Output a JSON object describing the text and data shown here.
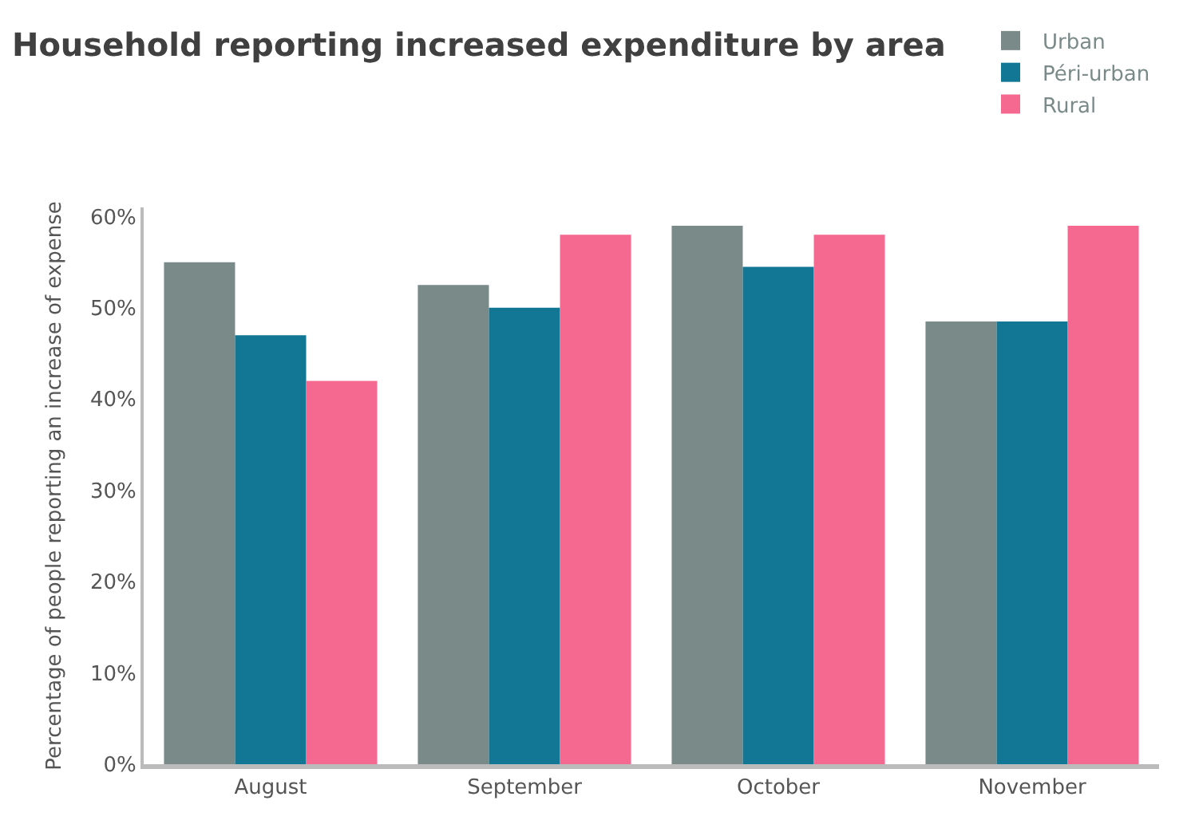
{
  "chart_data": {
    "type": "bar",
    "title": "Household reporting increased expenditure by area",
    "ylabel": "Percentage of people reporting an increase of expense",
    "categories": [
      "August",
      "September",
      "October",
      "November"
    ],
    "series": [
      {
        "name": "Urban",
        "color": "#7a8a89",
        "values": [
          55,
          52.5,
          59,
          48.5
        ]
      },
      {
        "name": "Péri-urban",
        "color": "#127794",
        "values": [
          47,
          50,
          54.5,
          48.5
        ]
      },
      {
        "name": "Rural",
        "color": "#f56991",
        "values": [
          42,
          58,
          58,
          59
        ]
      }
    ],
    "ylim": [
      0,
      61
    ],
    "yticks": [
      {
        "value": 0,
        "label": "0%"
      },
      {
        "value": 10,
        "label": "10%"
      },
      {
        "value": 20,
        "label": "20%"
      },
      {
        "value": 30,
        "label": "30%"
      },
      {
        "value": 40,
        "label": "40%"
      },
      {
        "value": 50,
        "label": "50%"
      },
      {
        "value": 60,
        "label": "60%"
      }
    ],
    "legend": "top right"
  }
}
